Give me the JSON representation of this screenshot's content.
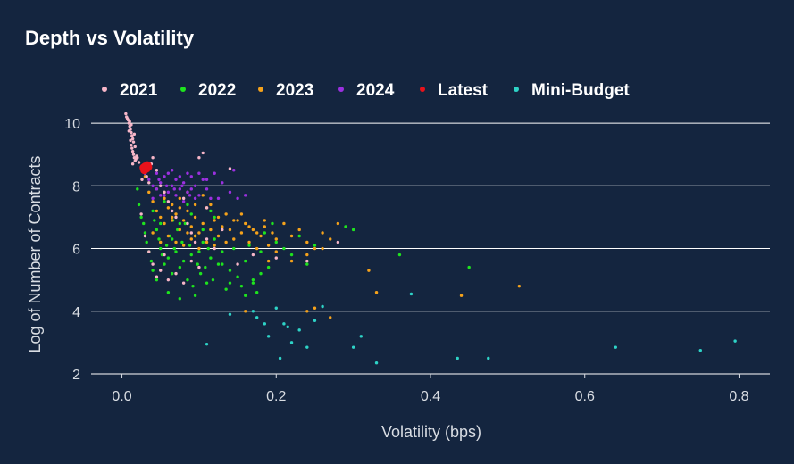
{
  "chart_data": {
    "type": "scatter",
    "title": "Depth vs Volatility",
    "xlabel": "Volatility (bps)",
    "ylabel": "Log of Number of Contracts",
    "xlim": [
      -0.04,
      0.84
    ],
    "ylim": [
      2,
      10.6
    ],
    "x_ticks": [
      0.0,
      0.2,
      0.4,
      0.6,
      0.8
    ],
    "x_tick_labels": [
      "0.0",
      "0.2",
      "0.4",
      "0.6",
      "0.8"
    ],
    "y_ticks": [
      2,
      4,
      6,
      8,
      10
    ],
    "y_tick_labels": [
      "2",
      "4",
      "6",
      "8",
      "10"
    ],
    "grid": "horizontal major lines",
    "legend_position": "top",
    "background_color": "#14253f",
    "series": [
      {
        "name": "2021",
        "color": "#f7b6c8",
        "points": [
          [
            0.005,
            10.3
          ],
          [
            0.006,
            10.2
          ],
          [
            0.008,
            10.1
          ],
          [
            0.009,
            10.0
          ],
          [
            0.01,
            9.9
          ],
          [
            0.011,
            9.8
          ],
          [
            0.012,
            9.7
          ],
          [
            0.013,
            9.6
          ],
          [
            0.014,
            9.5
          ],
          [
            0.015,
            9.4
          ],
          [
            0.012,
            9.3
          ],
          [
            0.013,
            9.2
          ],
          [
            0.014,
            9.1
          ],
          [
            0.015,
            9.0
          ],
          [
            0.016,
            8.9
          ],
          [
            0.017,
            8.8
          ],
          [
            0.018,
            8.85
          ],
          [
            0.007,
            10.15
          ],
          [
            0.01,
            10.05
          ],
          [
            0.012,
            9.95
          ],
          [
            0.016,
            9.65
          ],
          [
            0.017,
            9.25
          ],
          [
            0.019,
            8.95
          ],
          [
            0.02,
            8.9
          ],
          [
            0.009,
            9.75
          ],
          [
            0.011,
            9.45
          ],
          [
            0.014,
            8.7
          ],
          [
            0.022,
            8.75
          ],
          [
            0.025,
            8.6
          ],
          [
            0.028,
            8.5
          ],
          [
            0.03,
            8.4
          ],
          [
            0.026,
            8.2
          ],
          [
            0.032,
            8.3
          ],
          [
            0.035,
            8.1
          ],
          [
            0.038,
            8.7
          ],
          [
            0.04,
            8.9
          ],
          [
            0.045,
            8.5
          ],
          [
            0.05,
            8.0
          ],
          [
            0.055,
            7.8
          ],
          [
            0.06,
            7.5
          ],
          [
            0.065,
            7.2
          ],
          [
            0.07,
            7.0
          ],
          [
            0.08,
            7.6
          ],
          [
            0.085,
            6.8
          ],
          [
            0.09,
            6.5
          ],
          [
            0.095,
            6.2
          ],
          [
            0.1,
            8.9
          ],
          [
            0.105,
            9.05
          ],
          [
            0.11,
            7.3
          ],
          [
            0.12,
            6.0
          ],
          [
            0.13,
            6.6
          ],
          [
            0.14,
            8.55
          ],
          [
            0.025,
            7.1
          ],
          [
            0.03,
            6.4
          ],
          [
            0.035,
            5.9
          ],
          [
            0.04,
            5.5
          ],
          [
            0.045,
            5.1
          ],
          [
            0.05,
            5.3
          ],
          [
            0.055,
            5.8
          ],
          [
            0.06,
            5.0
          ],
          [
            0.07,
            5.2
          ],
          [
            0.08,
            4.9
          ],
          [
            0.09,
            5.6
          ],
          [
            0.1,
            5.4
          ],
          [
            0.11,
            6.3
          ],
          [
            0.15,
            5.5
          ],
          [
            0.17,
            5.8
          ],
          [
            0.2,
            5.7
          ],
          [
            0.24,
            5.6
          ],
          [
            0.28,
            6.2
          ]
        ]
      },
      {
        "name": "2022",
        "color": "#1ee31e",
        "points": [
          [
            0.02,
            7.9
          ],
          [
            0.022,
            7.4
          ],
          [
            0.025,
            7.0
          ],
          [
            0.028,
            6.8
          ],
          [
            0.03,
            6.5
          ],
          [
            0.032,
            6.2
          ],
          [
            0.035,
            5.9
          ],
          [
            0.038,
            5.6
          ],
          [
            0.04,
            5.3
          ],
          [
            0.042,
            6.9
          ],
          [
            0.045,
            6.6
          ],
          [
            0.048,
            6.3
          ],
          [
            0.05,
            6.0
          ],
          [
            0.052,
            5.8
          ],
          [
            0.055,
            5.5
          ],
          [
            0.058,
            6.1
          ],
          [
            0.06,
            5.7
          ],
          [
            0.062,
            6.4
          ],
          [
            0.065,
            5.2
          ],
          [
            0.068,
            6.0
          ],
          [
            0.07,
            5.9
          ],
          [
            0.072,
            6.6
          ],
          [
            0.075,
            5.4
          ],
          [
            0.078,
            6.2
          ],
          [
            0.08,
            5.6
          ],
          [
            0.082,
            6.8
          ],
          [
            0.085,
            5.0
          ],
          [
            0.088,
            6.1
          ],
          [
            0.09,
            5.8
          ],
          [
            0.092,
            4.8
          ],
          [
            0.095,
            6.4
          ],
          [
            0.098,
            5.5
          ],
          [
            0.1,
            5.9
          ],
          [
            0.102,
            5.2
          ],
          [
            0.105,
            6.2
          ],
          [
            0.108,
            5.4
          ],
          [
            0.11,
            4.9
          ],
          [
            0.112,
            6.0
          ],
          [
            0.115,
            5.7
          ],
          [
            0.118,
            5.0
          ],
          [
            0.12,
            6.3
          ],
          [
            0.125,
            5.5
          ],
          [
            0.13,
            5.9
          ],
          [
            0.135,
            4.7
          ],
          [
            0.14,
            5.3
          ],
          [
            0.145,
            6.0
          ],
          [
            0.15,
            5.1
          ],
          [
            0.155,
            4.8
          ],
          [
            0.16,
            5.6
          ],
          [
            0.165,
            6.1
          ],
          [
            0.17,
            5.0
          ],
          [
            0.175,
            4.6
          ],
          [
            0.18,
            5.2
          ],
          [
            0.185,
            6.5
          ],
          [
            0.19,
            5.4
          ],
          [
            0.195,
            6.8
          ],
          [
            0.2,
            6.2
          ],
          [
            0.21,
            6.0
          ],
          [
            0.22,
            5.8
          ],
          [
            0.23,
            6.4
          ],
          [
            0.24,
            5.5
          ],
          [
            0.25,
            6.1
          ],
          [
            0.29,
            6.7
          ],
          [
            0.3,
            6.6
          ],
          [
            0.36,
            5.8
          ],
          [
            0.45,
            5.4
          ],
          [
            0.075,
            4.4
          ],
          [
            0.06,
            4.6
          ],
          [
            0.045,
            5.0
          ],
          [
            0.095,
            4.5
          ],
          [
            0.05,
            6.8
          ],
          [
            0.04,
            7.2
          ],
          [
            0.055,
            7.5
          ],
          [
            0.066,
            6.9
          ],
          [
            0.09,
            7.1
          ],
          [
            0.12,
            7.0
          ],
          [
            0.065,
            6.3
          ],
          [
            0.075,
            6.8
          ],
          [
            0.085,
            7.4
          ],
          [
            0.105,
            6.6
          ],
          [
            0.115,
            7.2
          ],
          [
            0.16,
            4.5
          ],
          [
            0.14,
            4.9
          ],
          [
            0.13,
            5.5
          ],
          [
            0.17,
            4.9
          ],
          [
            0.18,
            5.9
          ]
        ]
      },
      {
        "name": "2023",
        "color": "#f5a21b",
        "points": [
          [
            0.03,
            8.3
          ],
          [
            0.035,
            7.8
          ],
          [
            0.04,
            7.5
          ],
          [
            0.045,
            7.2
          ],
          [
            0.05,
            7.0
          ],
          [
            0.055,
            6.8
          ],
          [
            0.06,
            7.3
          ],
          [
            0.065,
            6.9
          ],
          [
            0.07,
            7.1
          ],
          [
            0.075,
            6.6
          ],
          [
            0.08,
            6.9
          ],
          [
            0.085,
            7.2
          ],
          [
            0.09,
            6.7
          ],
          [
            0.095,
            7.0
          ],
          [
            0.1,
            6.5
          ],
          [
            0.105,
            6.8
          ],
          [
            0.11,
            7.3
          ],
          [
            0.115,
            6.6
          ],
          [
            0.12,
            6.9
          ],
          [
            0.125,
            6.4
          ],
          [
            0.13,
            6.7
          ],
          [
            0.135,
            7.1
          ],
          [
            0.14,
            6.6
          ],
          [
            0.145,
            6.3
          ],
          [
            0.15,
            6.9
          ],
          [
            0.155,
            6.5
          ],
          [
            0.16,
            6.8
          ],
          [
            0.165,
            6.2
          ],
          [
            0.17,
            6.6
          ],
          [
            0.175,
            6.0
          ],
          [
            0.18,
            6.4
          ],
          [
            0.185,
            6.7
          ],
          [
            0.19,
            6.1
          ],
          [
            0.195,
            6.5
          ],
          [
            0.2,
            6.3
          ],
          [
            0.21,
            6.8
          ],
          [
            0.22,
            6.4
          ],
          [
            0.23,
            6.6
          ],
          [
            0.24,
            6.2
          ],
          [
            0.25,
            6.0
          ],
          [
            0.26,
            6.5
          ],
          [
            0.27,
            6.3
          ],
          [
            0.28,
            6.8
          ],
          [
            0.19,
            5.6
          ],
          [
            0.2,
            5.9
          ],
          [
            0.22,
            5.6
          ],
          [
            0.24,
            5.8
          ],
          [
            0.26,
            6.0
          ],
          [
            0.32,
            5.3
          ],
          [
            0.33,
            4.6
          ],
          [
            0.25,
            4.1
          ],
          [
            0.24,
            4.0
          ],
          [
            0.27,
            3.8
          ],
          [
            0.16,
            4.0
          ],
          [
            0.44,
            4.5
          ],
          [
            0.515,
            4.8
          ],
          [
            0.045,
            7.9
          ],
          [
            0.055,
            7.6
          ],
          [
            0.065,
            7.4
          ],
          [
            0.075,
            7.6
          ],
          [
            0.085,
            7.8
          ],
          [
            0.095,
            7.4
          ],
          [
            0.105,
            7.7
          ],
          [
            0.04,
            6.5
          ],
          [
            0.05,
            6.2
          ],
          [
            0.06,
            6.4
          ],
          [
            0.07,
            6.2
          ],
          [
            0.08,
            6.1
          ],
          [
            0.09,
            6.3
          ],
          [
            0.1,
            6.0
          ],
          [
            0.11,
            6.2
          ],
          [
            0.12,
            6.1
          ],
          [
            0.065,
            7.0
          ],
          [
            0.075,
            7.3
          ],
          [
            0.085,
            6.5
          ],
          [
            0.095,
            6.4
          ],
          [
            0.115,
            7.4
          ],
          [
            0.125,
            7.0
          ],
          [
            0.135,
            6.2
          ],
          [
            0.145,
            6.9
          ],
          [
            0.155,
            7.1
          ],
          [
            0.165,
            6.7
          ],
          [
            0.175,
            6.5
          ],
          [
            0.185,
            6.9
          ]
        ]
      },
      {
        "name": "2024",
        "color": "#9b30e0",
        "points": [
          [
            0.03,
            8.4
          ],
          [
            0.035,
            8.2
          ],
          [
            0.04,
            8.0
          ],
          [
            0.045,
            7.9
          ],
          [
            0.05,
            8.1
          ],
          [
            0.055,
            8.3
          ],
          [
            0.06,
            7.8
          ],
          [
            0.065,
            8.0
          ],
          [
            0.07,
            8.2
          ],
          [
            0.075,
            7.9
          ],
          [
            0.08,
            8.1
          ],
          [
            0.085,
            7.8
          ],
          [
            0.09,
            8.3
          ],
          [
            0.095,
            8.0
          ],
          [
            0.1,
            7.7
          ],
          [
            0.105,
            8.2
          ],
          [
            0.11,
            7.9
          ],
          [
            0.115,
            7.6
          ],
          [
            0.12,
            8.4
          ],
          [
            0.13,
            8.1
          ],
          [
            0.14,
            7.8
          ],
          [
            0.045,
            8.4
          ],
          [
            0.055,
            7.7
          ],
          [
            0.065,
            8.5
          ],
          [
            0.075,
            8.3
          ],
          [
            0.085,
            8.4
          ],
          [
            0.095,
            7.6
          ],
          [
            0.04,
            7.6
          ],
          [
            0.05,
            7.7
          ],
          [
            0.06,
            8.4
          ],
          [
            0.07,
            7.7
          ],
          [
            0.08,
            7.5
          ],
          [
            0.09,
            7.9
          ],
          [
            0.1,
            8.4
          ],
          [
            0.11,
            8.2
          ],
          [
            0.125,
            7.6
          ],
          [
            0.15,
            7.6
          ],
          [
            0.16,
            7.7
          ],
          [
            0.145,
            8.5
          ],
          [
            0.048,
            8.2
          ],
          [
            0.058,
            8.0
          ],
          [
            0.068,
            7.9
          ],
          [
            0.078,
            8.0
          ],
          [
            0.088,
            7.7
          ]
        ]
      },
      {
        "name": "Latest",
        "color": "#e8121b",
        "points": [
          [
            0.028,
            8.58
          ],
          [
            0.03,
            8.62
          ],
          [
            0.032,
            8.55
          ],
          [
            0.034,
            8.6
          ],
          [
            0.029,
            8.5
          ],
          [
            0.033,
            8.66
          ]
        ]
      },
      {
        "name": "Mini-Budget",
        "color": "#2ed3c7",
        "points": [
          [
            0.11,
            2.95
          ],
          [
            0.14,
            3.9
          ],
          [
            0.17,
            4.0
          ],
          [
            0.175,
            3.8
          ],
          [
            0.185,
            3.6
          ],
          [
            0.19,
            3.2
          ],
          [
            0.2,
            4.1
          ],
          [
            0.205,
            2.5
          ],
          [
            0.21,
            3.6
          ],
          [
            0.215,
            3.5
          ],
          [
            0.22,
            3.0
          ],
          [
            0.23,
            3.4
          ],
          [
            0.24,
            2.85
          ],
          [
            0.25,
            3.7
          ],
          [
            0.26,
            4.15
          ],
          [
            0.3,
            2.85
          ],
          [
            0.31,
            3.2
          ],
          [
            0.33,
            2.35
          ],
          [
            0.375,
            4.55
          ],
          [
            0.435,
            2.5
          ],
          [
            0.475,
            2.5
          ],
          [
            0.64,
            2.85
          ],
          [
            0.75,
            2.75
          ],
          [
            0.795,
            3.05
          ]
        ]
      }
    ]
  }
}
